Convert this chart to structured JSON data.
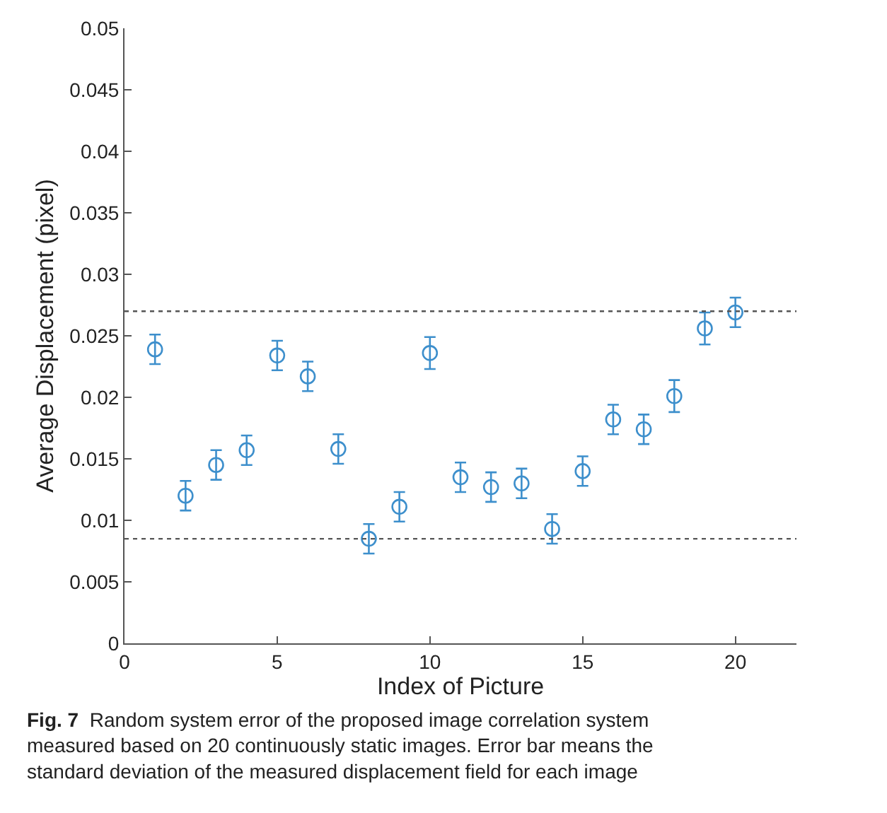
{
  "chart_data": {
    "type": "scatter",
    "xlabel": "Index of Picture",
    "ylabel": "Average Displacement (pixel)",
    "x": [
      1,
      2,
      3,
      4,
      5,
      6,
      7,
      8,
      9,
      10,
      11,
      12,
      13,
      14,
      15,
      16,
      17,
      18,
      19,
      20
    ],
    "series": [
      {
        "color": "#3d8fcc",
        "values": [
          0.0239,
          0.012,
          0.0145,
          0.0157,
          0.0234,
          0.0217,
          0.0158,
          0.0085,
          0.0111,
          0.0236,
          0.0135,
          0.0127,
          0.013,
          0.0093,
          0.014,
          0.0182,
          0.0174,
          0.0201,
          0.0256,
          0.0269
        ],
        "errors": [
          0.0012,
          0.0012,
          0.0012,
          0.0012,
          0.0012,
          0.0012,
          0.0012,
          0.0012,
          0.0012,
          0.0013,
          0.0012,
          0.0012,
          0.0012,
          0.0012,
          0.0012,
          0.0012,
          0.0012,
          0.0013,
          0.0013,
          0.0012
        ]
      }
    ],
    "marker": "circle",
    "xlim": [
      0,
      22
    ],
    "xticks": [
      0,
      5,
      10,
      15,
      20
    ],
    "ylim": [
      0,
      0.05
    ],
    "yticks": [
      0,
      0.005,
      0.01,
      0.015,
      0.02,
      0.025,
      0.03,
      0.035,
      0.04,
      0.045,
      0.05
    ],
    "ref_lines": [
      {
        "axis": "y",
        "value": 0.027,
        "line_style": "dotted",
        "color": "#555555"
      },
      {
        "axis": "y",
        "value": 0.0085,
        "line_style": "dotted",
        "color": "#555555"
      }
    ],
    "annotations": [
      "Fig. 7",
      "Random system error of the proposed image correlation system measured based on 20 continuously static images. Error bar means the standard deviation of the measured displacement field for each image"
    ]
  }
}
